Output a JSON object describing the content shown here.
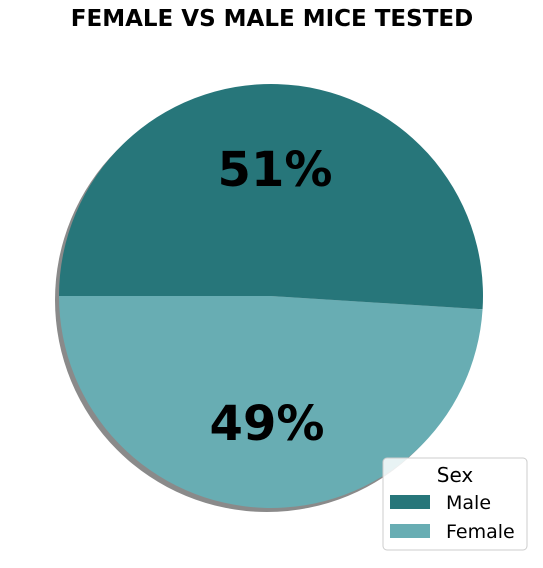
{
  "chart_data": {
    "type": "pie",
    "title": "FEMALE VS MALE MICE TESTED",
    "slices": [
      {
        "label": "Male",
        "value": 51,
        "display": "51%",
        "color": "#27767a"
      },
      {
        "label": "Female",
        "value": 49,
        "display": "49%",
        "color": "#68adb3"
      }
    ],
    "legend": {
      "title": "Sex",
      "placement": "lower-right"
    },
    "shadow": true,
    "start_angle_deg": 180,
    "direction": "clockwise"
  }
}
